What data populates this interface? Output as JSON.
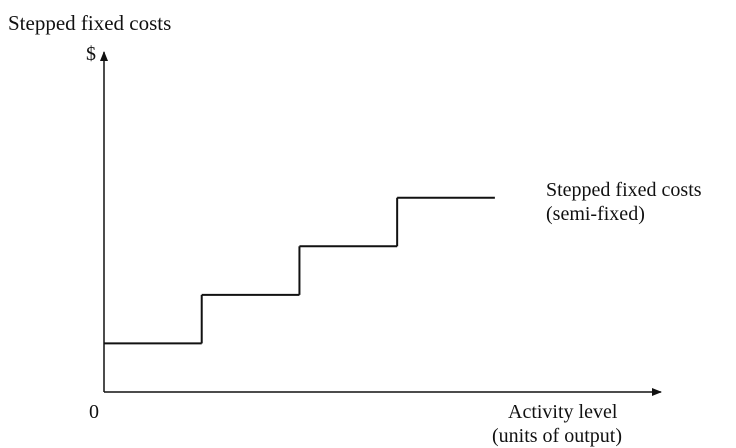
{
  "chart_data": {
    "type": "line",
    "title": "Stepped fixed costs",
    "ylabel": "$",
    "xlabel_line1": "Activity level",
    "xlabel_line2": "(units of output)",
    "origin_label": "0",
    "series": [
      {
        "name_line1": "Stepped fixed costs",
        "name_line2": "(semi-fixed)",
        "steps": [
          {
            "x_start": 0,
            "x_end": 1,
            "value": 1
          },
          {
            "x_start": 1,
            "x_end": 2,
            "value": 2
          },
          {
            "x_start": 2,
            "x_end": 3,
            "value": 3
          },
          {
            "x_start": 3,
            "x_end": 4,
            "value": 4
          }
        ]
      }
    ],
    "xlim": [
      0,
      5.7
    ],
    "ylim": [
      0,
      7
    ],
    "grid": false,
    "axis_ticks": false
  },
  "colors": {
    "line": "#111111",
    "axis": "#111111"
  }
}
